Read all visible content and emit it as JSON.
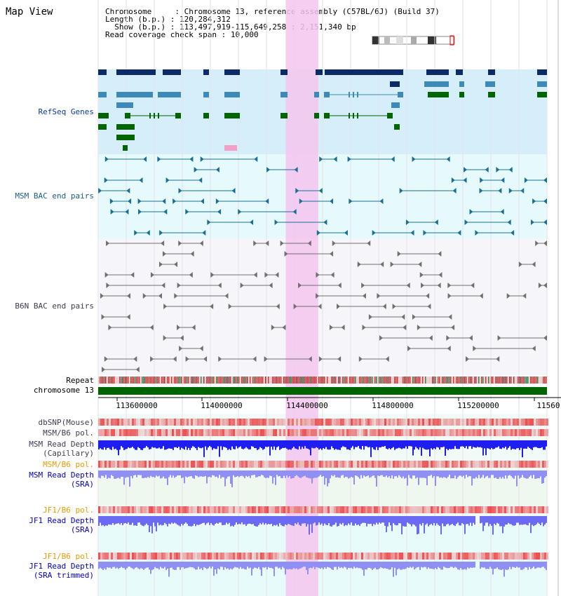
{
  "title": "Map View",
  "info": {
    "chromosome_label": "Chromosome",
    "chromosome_value": "Chromosome 13, reference assembly (C57BL/6J) (Build 37)",
    "length_label": "Length (b.p.)",
    "length_value": "120,284,312",
    "show_label": "Show (b.p.)",
    "show_value": "113,497,919-115,649,258 : 2,151,340 bp",
    "coverage_label": "Read coverage check span",
    "coverage_value": "10,000"
  },
  "tracks": {
    "refseq": "RefSeq Genes",
    "msm_bac": "MSM BAC end pairs",
    "b6n_bac": "B6N BAC end pairs",
    "repeat": "Repeat",
    "chromosome": "chromosome 13",
    "dbsnp": "dbSNP(Mouse)",
    "msm_b6_pol_1": "MSM/B6 pol.",
    "msm_depth_cap_1": "MSM Read Depth",
    "msm_depth_cap_2": "(Capillary)",
    "msm_b6_pol_2": "MSM/B6 pol.",
    "msm_depth_sra_1": "MSM Read Depth",
    "msm_depth_sra_2": "(SRA)",
    "jf1_pol_1": "JF1/B6 pol.",
    "jf1_depth_sra_1": "JF1 Read Depth",
    "jf1_depth_sra_2": "(SRA)",
    "jf1_pol_2": "JF1/B6 pol.",
    "jf1_depth_trim_1": "JF1 Read Depth",
    "jf1_depth_trim_2": "(SRA trimmed)"
  },
  "axis": {
    "start": 113497919,
    "end": 115649258,
    "ticks": [
      "113600000",
      "114000000",
      "114400000",
      "114800000",
      "115200000",
      "11560"
    ]
  },
  "highlight": {
    "start_bp": 114397000,
    "end_bp": 114553000,
    "color": "#f5c6ee"
  },
  "colors": {
    "refseq_bg": "#d6eefa",
    "msm_bg": "#e6f9fb",
    "b6n_bg": "#f6f6fa",
    "refseq_dark": "#0b2a66",
    "refseq_mid": "#3d8ab8",
    "refseq_green": "#006400",
    "msm_feature": "#1a6f96",
    "b6n_feature": "#707070",
    "chrom_bar": "#006400",
    "depth_capillary": "#1e1ef0",
    "depth_sra": "#8f8ff4",
    "depth_jf1": "#6a6af2"
  }
}
